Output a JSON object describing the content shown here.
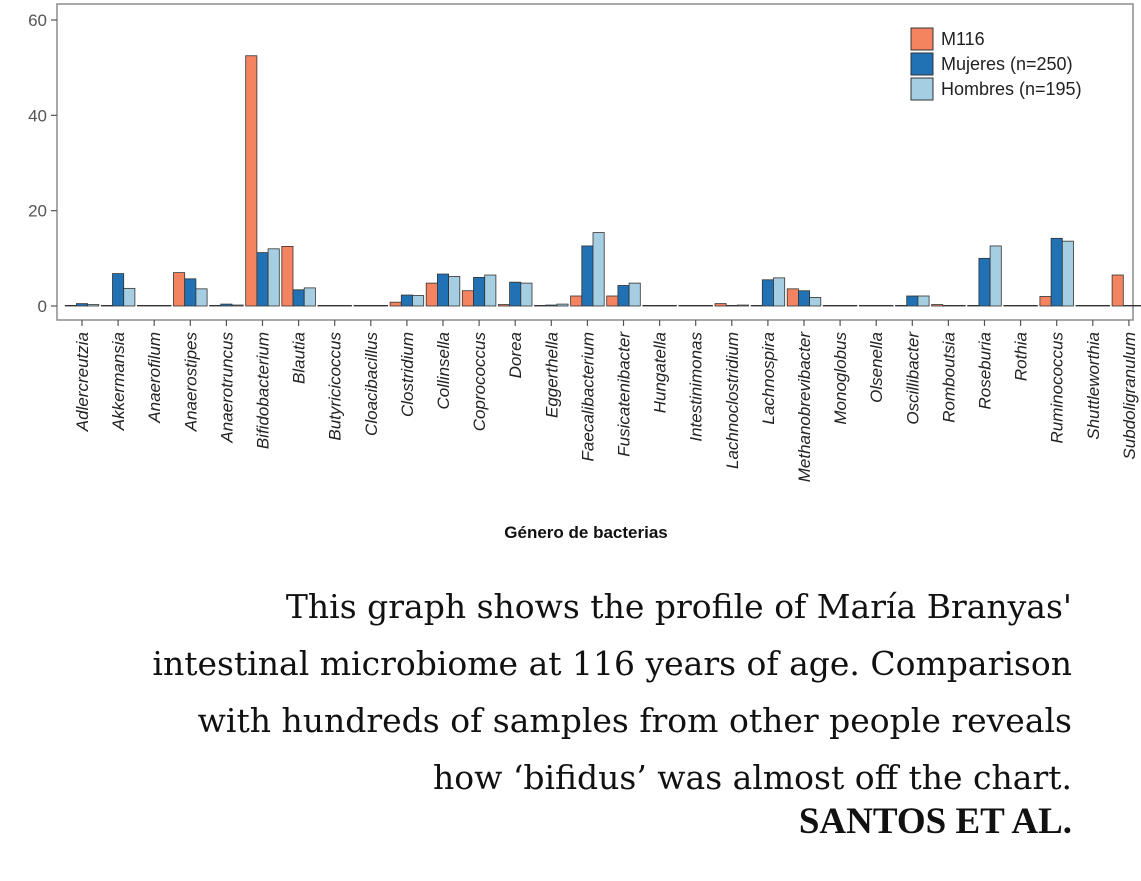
{
  "chart_data": {
    "type": "bar",
    "title": "",
    "xlabel": "Género de bacterias",
    "ylabel": "",
    "ylim": [
      0,
      62
    ],
    "yticks": [
      0,
      20,
      40,
      60
    ],
    "grid": false,
    "legend_position": "top-right",
    "categories": [
      "Adlercreutzia",
      "Akkermansia",
      "Anaerofilum",
      "Anaerostipes",
      "Anaerotruncus",
      "Bifidobacterium",
      "Blautia",
      "Butyricicoccus",
      "Cloacibacillus",
      "Clostridium",
      "Collinsella",
      "Coprococcus",
      "Dorea",
      "Eggerthella",
      "Faecalibacterium",
      "Fusicatenibacter",
      "Hungatella",
      "Intestinimonas",
      "Lachnoclostridium",
      "Lachnospira",
      "Methanobrevibacter",
      "Monoglobus",
      "Olsenella",
      "Oscillibacter",
      "Romboutsia",
      "Roseburia",
      "Rothia",
      "Ruminococcus",
      "Shuttleworthia",
      "Subdoligranulum"
    ],
    "series": [
      {
        "name": "M116",
        "color": "#f4845f",
        "values": [
          0.1,
          0.1,
          0,
          7,
          0.1,
          52.5,
          12.5,
          0.1,
          0.1,
          0.8,
          4.8,
          3.2,
          0.3,
          0.1,
          2.1,
          2.1,
          0.1,
          0.1,
          0.5,
          0.1,
          3.6,
          0.1,
          0.1,
          0.1,
          0.3,
          0.1,
          0.1,
          2,
          0.1,
          6.5
        ]
      },
      {
        "name": "Mujeres (n=250)",
        "color": "#2171b5",
        "values": [
          0.5,
          6.8,
          0,
          5.7,
          0.4,
          11.2,
          3.4,
          0.1,
          0.1,
          2.3,
          6.7,
          6,
          5,
          0.2,
          12.6,
          4.3,
          0.1,
          0.1,
          0.1,
          5.5,
          3.2,
          0.1,
          0.1,
          2.1,
          0.1,
          10,
          0.1,
          14.2,
          0.1,
          0
        ]
      },
      {
        "name": "Hombres (n=195)",
        "color": "#a6cee3",
        "values": [
          0.3,
          3.7,
          0,
          3.6,
          0.2,
          12,
          3.8,
          0.1,
          0.1,
          2.2,
          6.2,
          6.5,
          4.8,
          0.4,
          15.4,
          4.8,
          0.1,
          0.1,
          0.2,
          5.9,
          1.8,
          0.1,
          0.1,
          2.1,
          0.1,
          12.6,
          0.1,
          13.6,
          0.1,
          0
        ]
      }
    ]
  },
  "caption": {
    "lines": [
      "This graph shows the profile of María Branyas'",
      "intestinal microbiome at 116 years of age. Comparison",
      "with hundreds of samples from other people reveals",
      "how ‘bifidus’ was almost off the chart."
    ],
    "credit": "SANTOS ET AL."
  }
}
